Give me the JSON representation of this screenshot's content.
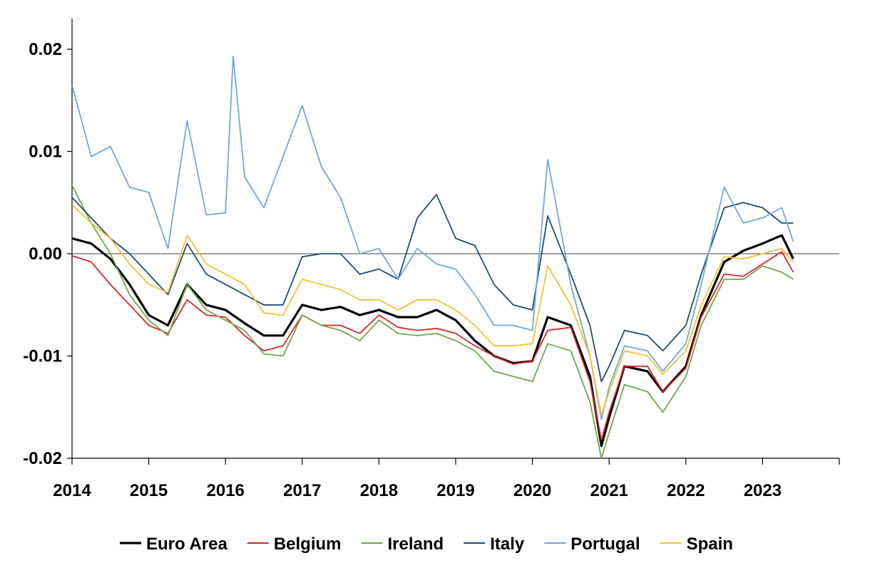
{
  "chart_data": {
    "type": "line",
    "title": "",
    "xlabel": "",
    "ylabel": "",
    "x_range": [
      2014.0,
      2024.0
    ],
    "ylim": [
      -0.02,
      0.023
    ],
    "x_ticks": [
      "2014",
      "2015",
      "2016",
      "2017",
      "2018",
      "2019",
      "2020",
      "2021",
      "2022",
      "2023"
    ],
    "y_ticks": [
      "0.02",
      "0.01",
      "0.00",
      "-0.01",
      "-0.02"
    ],
    "reference_line": 0,
    "grid": false,
    "legend_position": "bottom",
    "series": [
      {
        "name": "Euro Area",
        "color": "#000000",
        "points": [
          [
            2014.0,
            0.0015
          ],
          [
            2014.25,
            0.001
          ],
          [
            2014.5,
            -0.0005
          ],
          [
            2014.75,
            -0.003
          ],
          [
            2015.0,
            -0.006
          ],
          [
            2015.25,
            -0.007
          ],
          [
            2015.5,
            -0.003
          ],
          [
            2015.75,
            -0.005
          ],
          [
            2016.0,
            -0.0055
          ],
          [
            2016.25,
            -0.0068
          ],
          [
            2016.5,
            -0.008
          ],
          [
            2016.75,
            -0.008
          ],
          [
            2017.0,
            -0.005
          ],
          [
            2017.25,
            -0.0055
          ],
          [
            2017.5,
            -0.0052
          ],
          [
            2017.75,
            -0.006
          ],
          [
            2018.0,
            -0.0055
          ],
          [
            2018.25,
            -0.0062
          ],
          [
            2018.5,
            -0.0062
          ],
          [
            2018.75,
            -0.0055
          ],
          [
            2019.0,
            -0.0065
          ],
          [
            2019.25,
            -0.0085
          ],
          [
            2019.5,
            -0.01
          ],
          [
            2019.75,
            -0.0107
          ],
          [
            2020.0,
            -0.0105
          ],
          [
            2020.2,
            -0.0062
          ],
          [
            2020.5,
            -0.007
          ],
          [
            2020.75,
            -0.012
          ],
          [
            2020.9,
            -0.0188
          ],
          [
            2021.0,
            -0.016
          ],
          [
            2021.2,
            -0.011
          ],
          [
            2021.5,
            -0.0115
          ],
          [
            2021.7,
            -0.0135
          ],
          [
            2022.0,
            -0.011
          ],
          [
            2022.2,
            -0.006
          ],
          [
            2022.5,
            -0.0008
          ],
          [
            2022.75,
            0.0003
          ],
          [
            2023.0,
            0.001
          ],
          [
            2023.25,
            0.0018
          ],
          [
            2023.4,
            -0.0005
          ]
        ]
      },
      {
        "name": "Belgium",
        "color": "#d62728",
        "points": [
          [
            2014.0,
            -0.0002
          ],
          [
            2014.25,
            -0.0008
          ],
          [
            2014.5,
            -0.003
          ],
          [
            2014.75,
            -0.005
          ],
          [
            2015.0,
            -0.007
          ],
          [
            2015.25,
            -0.0078
          ],
          [
            2015.5,
            -0.0045
          ],
          [
            2015.75,
            -0.006
          ],
          [
            2016.0,
            -0.0062
          ],
          [
            2016.25,
            -0.008
          ],
          [
            2016.5,
            -0.0095
          ],
          [
            2016.75,
            -0.009
          ],
          [
            2017.0,
            -0.006
          ],
          [
            2017.25,
            -0.007
          ],
          [
            2017.5,
            -0.007
          ],
          [
            2017.75,
            -0.0078
          ],
          [
            2018.0,
            -0.006
          ],
          [
            2018.25,
            -0.0072
          ],
          [
            2018.5,
            -0.0075
          ],
          [
            2018.75,
            -0.0073
          ],
          [
            2019.0,
            -0.0078
          ],
          [
            2019.25,
            -0.009
          ],
          [
            2019.5,
            -0.01
          ],
          [
            2019.75,
            -0.0108
          ],
          [
            2020.0,
            -0.0105
          ],
          [
            2020.2,
            -0.0075
          ],
          [
            2020.5,
            -0.0072
          ],
          [
            2020.75,
            -0.0125
          ],
          [
            2020.9,
            -0.0182
          ],
          [
            2021.0,
            -0.0155
          ],
          [
            2021.2,
            -0.011
          ],
          [
            2021.5,
            -0.011
          ],
          [
            2021.7,
            -0.0135
          ],
          [
            2022.0,
            -0.0112
          ],
          [
            2022.2,
            -0.0062
          ],
          [
            2022.5,
            -0.002
          ],
          [
            2022.75,
            -0.0022
          ],
          [
            2023.0,
            -0.001
          ],
          [
            2023.25,
            0.0002
          ],
          [
            2023.4,
            -0.0018
          ]
        ]
      },
      {
        "name": "Ireland",
        "color": "#70a84a",
        "points": [
          [
            2014.0,
            0.0067
          ],
          [
            2014.25,
            0.003
          ],
          [
            2014.5,
            0.0
          ],
          [
            2014.75,
            -0.004
          ],
          [
            2015.0,
            -0.0065
          ],
          [
            2015.25,
            -0.008
          ],
          [
            2015.5,
            -0.003
          ],
          [
            2015.75,
            -0.0055
          ],
          [
            2016.0,
            -0.0065
          ],
          [
            2016.25,
            -0.0075
          ],
          [
            2016.5,
            -0.0098
          ],
          [
            2016.75,
            -0.01
          ],
          [
            2017.0,
            -0.006
          ],
          [
            2017.25,
            -0.007
          ],
          [
            2017.5,
            -0.0075
          ],
          [
            2017.75,
            -0.0085
          ],
          [
            2018.0,
            -0.0065
          ],
          [
            2018.25,
            -0.0078
          ],
          [
            2018.5,
            -0.008
          ],
          [
            2018.75,
            -0.0078
          ],
          [
            2019.0,
            -0.0085
          ],
          [
            2019.25,
            -0.0095
          ],
          [
            2019.5,
            -0.0115
          ],
          [
            2019.75,
            -0.012
          ],
          [
            2020.0,
            -0.0125
          ],
          [
            2020.2,
            -0.0088
          ],
          [
            2020.5,
            -0.0095
          ],
          [
            2020.75,
            -0.0145
          ],
          [
            2020.9,
            -0.02
          ],
          [
            2021.0,
            -0.0175
          ],
          [
            2021.2,
            -0.0128
          ],
          [
            2021.5,
            -0.0135
          ],
          [
            2021.7,
            -0.0155
          ],
          [
            2022.0,
            -0.012
          ],
          [
            2022.2,
            -0.007
          ],
          [
            2022.5,
            -0.0025
          ],
          [
            2022.75,
            -0.0025
          ],
          [
            2023.0,
            -0.0012
          ],
          [
            2023.25,
            -0.0018
          ],
          [
            2023.4,
            -0.0025
          ]
        ]
      },
      {
        "name": "Italy",
        "color": "#1f4e79",
        "points": [
          [
            2014.0,
            0.0055
          ],
          [
            2014.25,
            0.0035
          ],
          [
            2014.5,
            0.0015
          ],
          [
            2014.75,
            0.0
          ],
          [
            2015.0,
            -0.002
          ],
          [
            2015.25,
            -0.004
          ],
          [
            2015.5,
            0.001
          ],
          [
            2015.75,
            -0.002
          ],
          [
            2016.0,
            -0.003
          ],
          [
            2016.25,
            -0.004
          ],
          [
            2016.5,
            -0.005
          ],
          [
            2016.75,
            -0.005
          ],
          [
            2017.0,
            -0.0003
          ],
          [
            2017.25,
            0.0
          ],
          [
            2017.5,
            0.0
          ],
          [
            2017.75,
            -0.002
          ],
          [
            2018.0,
            -0.0015
          ],
          [
            2018.25,
            -0.0025
          ],
          [
            2018.5,
            0.0035
          ],
          [
            2018.75,
            0.0058
          ],
          [
            2019.0,
            0.0015
          ],
          [
            2019.25,
            0.0008
          ],
          [
            2019.5,
            -0.003
          ],
          [
            2019.75,
            -0.005
          ],
          [
            2020.0,
            -0.0055
          ],
          [
            2020.2,
            0.0037
          ],
          [
            2020.5,
            -0.002
          ],
          [
            2020.75,
            -0.007
          ],
          [
            2020.9,
            -0.0125
          ],
          [
            2021.0,
            -0.011
          ],
          [
            2021.2,
            -0.0075
          ],
          [
            2021.5,
            -0.008
          ],
          [
            2021.7,
            -0.0095
          ],
          [
            2022.0,
            -0.007
          ],
          [
            2022.2,
            -0.002
          ],
          [
            2022.5,
            0.0045
          ],
          [
            2022.75,
            0.005
          ],
          [
            2023.0,
            0.0045
          ],
          [
            2023.25,
            0.003
          ],
          [
            2023.4,
            0.003
          ]
        ]
      },
      {
        "name": "Portugal",
        "color": "#6fa8dc",
        "points": [
          [
            2014.0,
            0.0165
          ],
          [
            2014.25,
            0.0095
          ],
          [
            2014.5,
            0.0105
          ],
          [
            2014.75,
            0.0065
          ],
          [
            2015.0,
            0.006
          ],
          [
            2015.25,
            0.0005
          ],
          [
            2015.5,
            0.013
          ],
          [
            2015.75,
            0.0038
          ],
          [
            2016.0,
            0.004
          ],
          [
            2016.1,
            0.0193
          ],
          [
            2016.25,
            0.0075
          ],
          [
            2016.5,
            0.0045
          ],
          [
            2016.75,
            0.0095
          ],
          [
            2017.0,
            0.0145
          ],
          [
            2017.25,
            0.0085
          ],
          [
            2017.5,
            0.0055
          ],
          [
            2017.75,
            0.0
          ],
          [
            2018.0,
            0.0005
          ],
          [
            2018.25,
            -0.0025
          ],
          [
            2018.5,
            0.0005
          ],
          [
            2018.75,
            -0.001
          ],
          [
            2019.0,
            -0.0015
          ],
          [
            2019.25,
            -0.004
          ],
          [
            2019.5,
            -0.007
          ],
          [
            2019.75,
            -0.007
          ],
          [
            2020.0,
            -0.0075
          ],
          [
            2020.2,
            0.0092
          ],
          [
            2020.5,
            -0.003
          ],
          [
            2020.75,
            -0.01
          ],
          [
            2020.9,
            -0.0162
          ],
          [
            2021.0,
            -0.013
          ],
          [
            2021.2,
            -0.009
          ],
          [
            2021.5,
            -0.0095
          ],
          [
            2021.7,
            -0.0115
          ],
          [
            2022.0,
            -0.0088
          ],
          [
            2022.2,
            -0.003
          ],
          [
            2022.5,
            0.0065
          ],
          [
            2022.75,
            0.003
          ],
          [
            2023.0,
            0.0035
          ],
          [
            2023.25,
            0.0045
          ],
          [
            2023.4,
            0.0012
          ]
        ]
      },
      {
        "name": "Spain",
        "color": "#f1c232",
        "points": [
          [
            2014.0,
            0.0048
          ],
          [
            2014.25,
            0.003
          ],
          [
            2014.5,
            0.0015
          ],
          [
            2014.75,
            -0.001
          ],
          [
            2015.0,
            -0.003
          ],
          [
            2015.25,
            -0.0038
          ],
          [
            2015.5,
            0.0018
          ],
          [
            2015.75,
            -0.001
          ],
          [
            2016.0,
            -0.002
          ],
          [
            2016.25,
            -0.003
          ],
          [
            2016.5,
            -0.0058
          ],
          [
            2016.75,
            -0.006
          ],
          [
            2017.0,
            -0.0025
          ],
          [
            2017.25,
            -0.003
          ],
          [
            2017.5,
            -0.0035
          ],
          [
            2017.75,
            -0.0045
          ],
          [
            2018.0,
            -0.0045
          ],
          [
            2018.25,
            -0.0055
          ],
          [
            2018.5,
            -0.0045
          ],
          [
            2018.75,
            -0.0045
          ],
          [
            2019.0,
            -0.0055
          ],
          [
            2019.25,
            -0.007
          ],
          [
            2019.5,
            -0.009
          ],
          [
            2019.75,
            -0.009
          ],
          [
            2020.0,
            -0.0088
          ],
          [
            2020.2,
            -0.0012
          ],
          [
            2020.5,
            -0.005
          ],
          [
            2020.75,
            -0.01
          ],
          [
            2020.9,
            -0.0158
          ],
          [
            2021.0,
            -0.0135
          ],
          [
            2021.2,
            -0.0095
          ],
          [
            2021.5,
            -0.01
          ],
          [
            2021.7,
            -0.0118
          ],
          [
            2022.0,
            -0.0095
          ],
          [
            2022.2,
            -0.005
          ],
          [
            2022.5,
            -0.0003
          ],
          [
            2022.75,
            -0.0005
          ],
          [
            2023.0,
            0.0
          ],
          [
            2023.25,
            0.0005
          ],
          [
            2023.4,
            -0.0008
          ]
        ]
      }
    ]
  }
}
